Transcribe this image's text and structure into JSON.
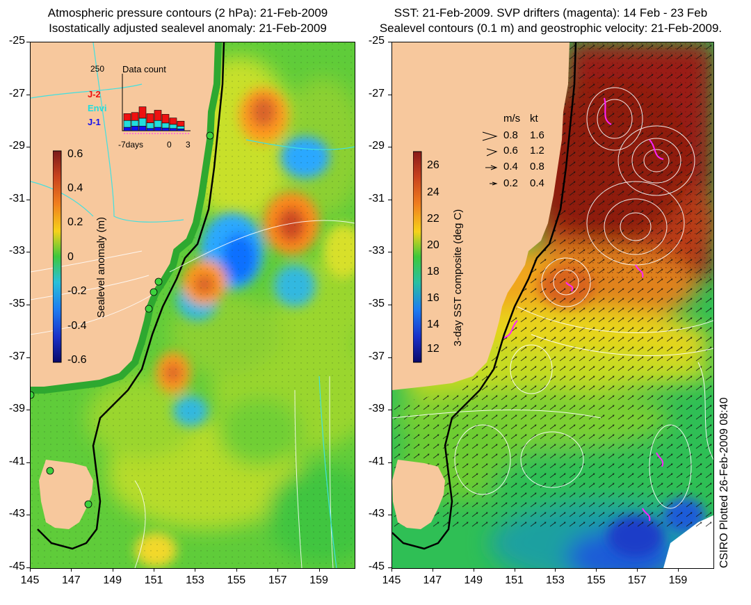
{
  "left_panel": {
    "title_line1": "Atmospheric pressure contours (2 hPa): 21-Feb-2009",
    "title_line2": "Isostatically adjusted sealevel anomaly: 21-Feb-2009",
    "colorbar": {
      "label": "Sealevel anomaly (m)",
      "ticks": [
        "0.6",
        "0.4",
        "0.2",
        "0",
        "-0.2",
        "-0.4",
        "-0.6"
      ]
    },
    "inset": {
      "title": "Data count",
      "ymax": "250",
      "legend": [
        {
          "name": "J-2",
          "color": "#ee1111"
        },
        {
          "name": "Envi",
          "color": "#22dddd"
        },
        {
          "name": "J-1",
          "color": "#1111ee"
        }
      ],
      "x_ticks": [
        "-7days",
        "0",
        "3"
      ],
      "bars": [
        {
          "red": 30,
          "cyan": 30,
          "blue": 15
        },
        {
          "red": 35,
          "cyan": 25,
          "blue": 20
        },
        {
          "red": 50,
          "cyan": 35,
          "blue": 20
        },
        {
          "red": 40,
          "cyan": 25,
          "blue": 10
        },
        {
          "red": 45,
          "cyan": 30,
          "blue": 15
        },
        {
          "red": 38,
          "cyan": 22,
          "blue": 12
        },
        {
          "red": 28,
          "cyan": 18,
          "blue": 10
        },
        {
          "red": 22,
          "cyan": 12,
          "blue": 8
        }
      ]
    }
  },
  "right_panel": {
    "title_line1": "SST: 21-Feb-2009. SVP drifters (magenta): 14 Feb - 23 Feb",
    "title_line2": "Sealevel contours (0.1 m) and geostrophic velocity: 21-Feb-2009.",
    "colorbar": {
      "label": "3-day SST composite (deg C)",
      "ticks": [
        "26",
        "24",
        "22",
        "20",
        "18",
        "16",
        "14",
        "12"
      ]
    },
    "velocity_legend": {
      "header_ms": "m/s",
      "header_kt": "kt",
      "rows": [
        {
          "ms": "0.8",
          "kt": "1.6"
        },
        {
          "ms": "0.6",
          "kt": "1.2"
        },
        {
          "ms": "0.4",
          "kt": "0.8"
        },
        {
          "ms": "0.2",
          "kt": "0.4"
        }
      ]
    }
  },
  "y_ticks": [
    "-25",
    "-27",
    "-29",
    "-31",
    "-33",
    "-35",
    "-37",
    "-39",
    "-41",
    "-43",
    "-45"
  ],
  "x_ticks": [
    "145",
    "147",
    "149",
    "151",
    "153",
    "155",
    "157",
    "159"
  ],
  "side_note": "CSIRO Plotted 26-Feb-2009 08:40"
}
